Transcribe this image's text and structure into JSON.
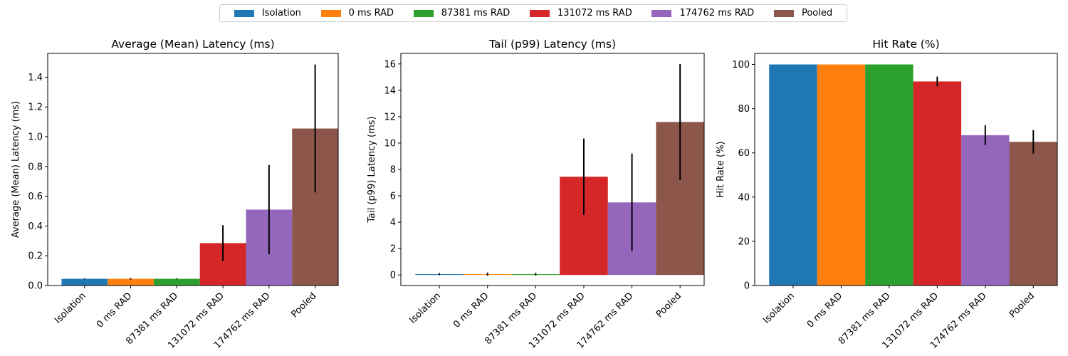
{
  "colors": [
    "#1f77b4",
    "#ff7f0e",
    "#2ca02c",
    "#d62728",
    "#9467bd",
    "#8c564b"
  ],
  "chart_data": [
    {
      "type": "bar",
      "title": "Average (Mean) Latency (ms)",
      "xlabel": "",
      "ylabel": "Average (Mean) Latency (ms)",
      "categories": [
        "Isolation",
        "0 ms RAD",
        "87381 ms RAD",
        "131072 ms RAD",
        "174762 ms RAD",
        "Pooled"
      ],
      "values": [
        0.045,
        0.045,
        0.045,
        0.285,
        0.51,
        1.055
      ],
      "errors": [
        0.003,
        0.005,
        0.003,
        0.12,
        0.3,
        0.43
      ],
      "ylim": [
        0,
        1.56
      ],
      "yticks": [
        0.0,
        0.2,
        0.4,
        0.6,
        0.8,
        1.0,
        1.2,
        1.4
      ],
      "ytick_labels": [
        "0.0",
        "0.2",
        "0.4",
        "0.6",
        "0.8",
        "1.0",
        "1.2",
        "1.4"
      ],
      "legend": [
        "Isolation",
        "0 ms RAD",
        "87381 ms RAD",
        "131072 ms RAD",
        "174762 ms RAD",
        "Pooled"
      ],
      "legend_position": "top-center",
      "grid": false
    },
    {
      "type": "bar",
      "title": "Tail (p99) Latency (ms)",
      "xlabel": "",
      "ylabel": "Tail (p99) Latency (ms)",
      "categories": [
        "Isolation",
        "0 ms RAD",
        "87381 ms RAD",
        "131072 ms RAD",
        "174762 ms RAD",
        "Pooled"
      ],
      "values": [
        0.06,
        0.06,
        0.06,
        7.45,
        5.5,
        11.6
      ],
      "errors": [
        0.08,
        0.12,
        0.1,
        2.9,
        3.7,
        4.4
      ],
      "ylim": [
        -0.8,
        16.8
      ],
      "yticks": [
        0,
        2,
        4,
        6,
        8,
        10,
        12,
        14,
        16
      ],
      "ytick_labels": [
        "0",
        "2",
        "4",
        "6",
        "8",
        "10",
        "12",
        "14",
        "16"
      ],
      "grid": false
    },
    {
      "type": "bar",
      "title": "Hit Rate (%)",
      "xlabel": "",
      "ylabel": "Hit Rate (%)",
      "categories": [
        "Isolation",
        "0 ms RAD",
        "87381 ms RAD",
        "131072 ms RAD",
        "174762 ms RAD",
        "Pooled"
      ],
      "values": [
        100,
        100,
        100,
        92.3,
        68,
        65
      ],
      "errors": [
        0,
        0,
        0,
        2.2,
        4.5,
        5.3
      ],
      "ylim": [
        0,
        105
      ],
      "yticks": [
        0,
        20,
        40,
        60,
        80,
        100
      ],
      "ytick_labels": [
        "0",
        "20",
        "40",
        "60",
        "80",
        "100"
      ],
      "grid": false
    }
  ]
}
